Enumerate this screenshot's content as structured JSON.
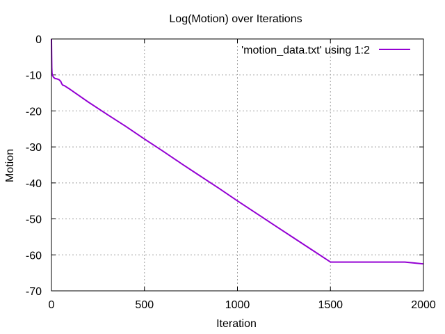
{
  "chart_data": {
    "type": "line",
    "title": "Log(Motion) over Iterations",
    "xlabel": "Iteration",
    "ylabel": "Motion",
    "xlim": [
      0,
      2000
    ],
    "ylim": [
      -70,
      0
    ],
    "xticks": [
      0,
      500,
      1000,
      1500,
      2000
    ],
    "yticks": [
      0,
      -10,
      -20,
      -30,
      -40,
      -50,
      -60,
      -70
    ],
    "grid": true,
    "legend_position": "top-right",
    "series": [
      {
        "name": "'motion_data.txt' using 1:2",
        "color": "#9400d3",
        "x": [
          0,
          1,
          2,
          3,
          5,
          8,
          10,
          15,
          20,
          30,
          40,
          50,
          55,
          60,
          70,
          100,
          200,
          300,
          400,
          500,
          600,
          700,
          800,
          900,
          1000,
          1100,
          1200,
          1300,
          1400,
          1500,
          1600,
          1700,
          1800,
          1900,
          2000
        ],
        "values": [
          0,
          -5.0,
          -8.0,
          -9.5,
          -10.0,
          -10.3,
          -10.6,
          -10.8,
          -11.0,
          -11.1,
          -11.3,
          -11.8,
          -12.4,
          -12.8,
          -13.0,
          -14.0,
          -17.6,
          -21.0,
          -24.3,
          -27.8,
          -31.2,
          -34.7,
          -38.1,
          -41.5,
          -45.0,
          -48.4,
          -51.8,
          -55.2,
          -58.6,
          -62.0,
          -62.0,
          -62.0,
          -62.0,
          -62.0,
          -62.5
        ]
      }
    ]
  }
}
